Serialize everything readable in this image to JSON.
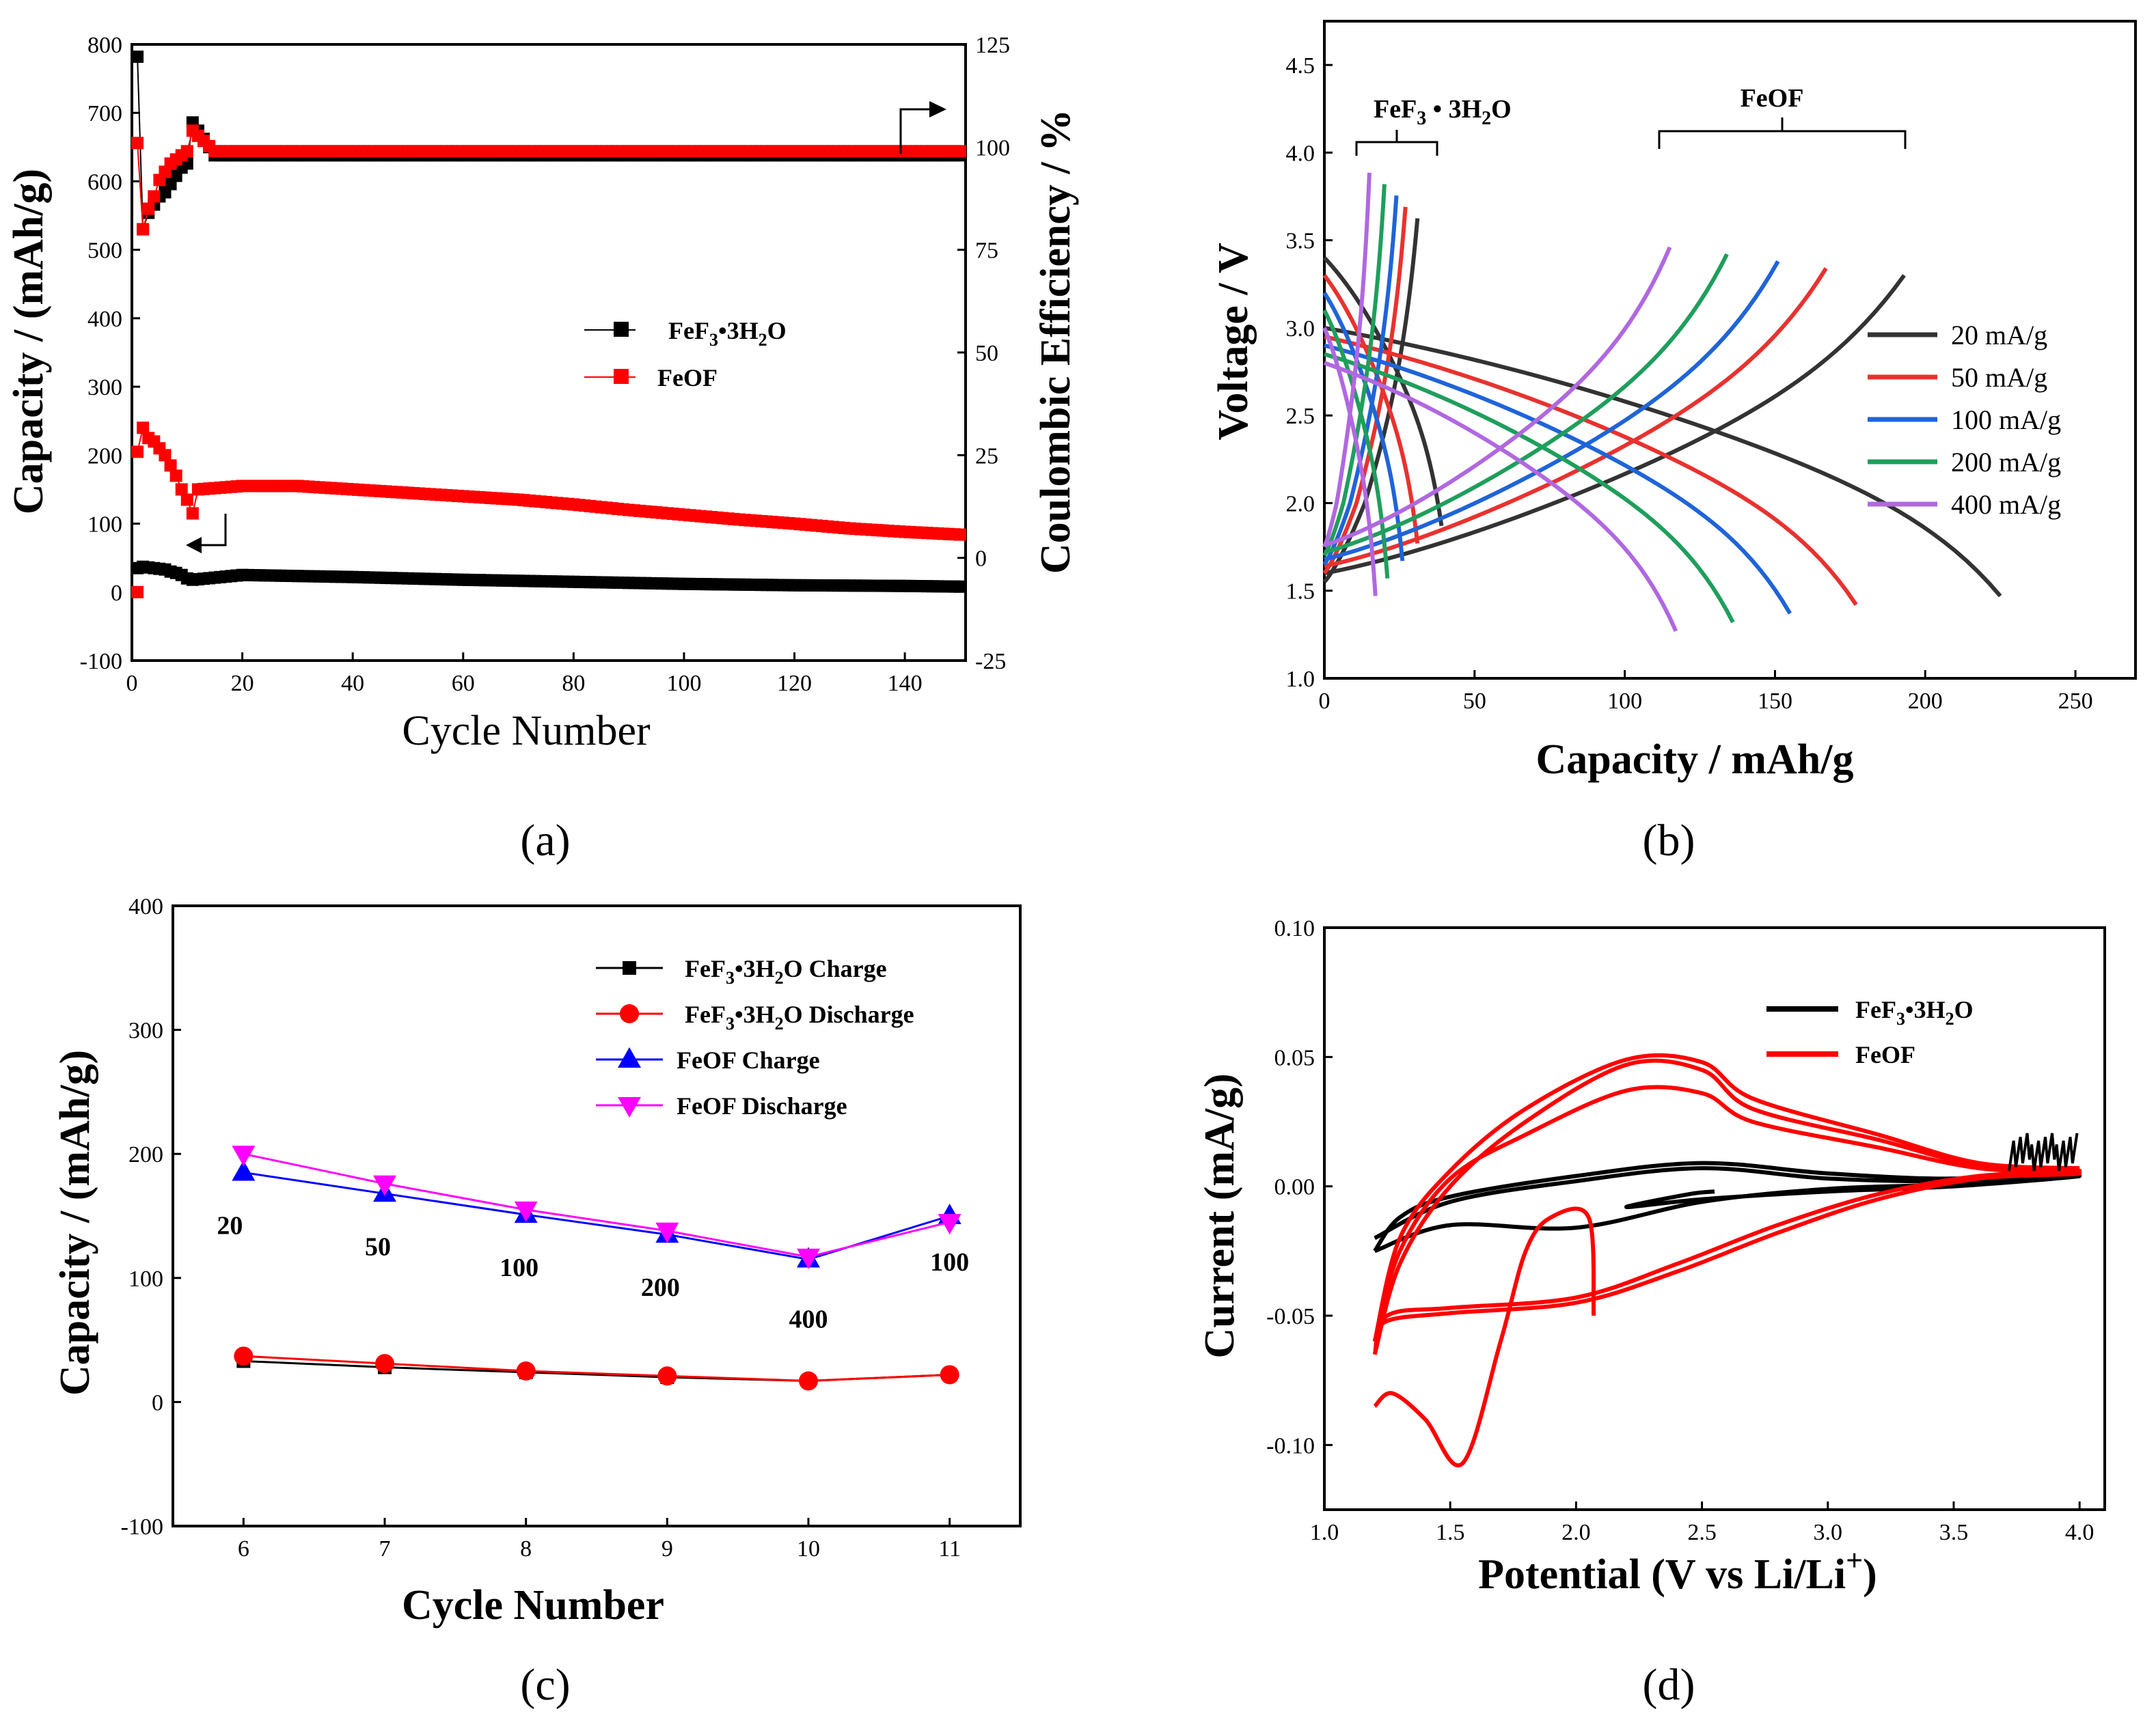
{
  "panels": [
    {
      "id": "a",
      "label": "(a)"
    },
    {
      "id": "b",
      "label": "(b)"
    },
    {
      "id": "c",
      "label": "(c)"
    },
    {
      "id": "d",
      "label": "(d)"
    }
  ],
  "colors": {
    "black": "#000000",
    "red": "#ff0000",
    "blue": "#0000ff",
    "magenta": "#ff00ff",
    "c20": "#333333",
    "c50": "#e8322f",
    "c100": "#1f64d8",
    "c200": "#1f9e5c",
    "c400": "#b068e0"
  },
  "chart_data": [
    {
      "panel": "a",
      "type": "scatter",
      "xlabel": "Cycle Number",
      "ylabel": "Capacity / (mAh/g)",
      "ylabel_right": "Coulombic Efficiency / %",
      "xlim": [
        0,
        151
      ],
      "ylim": [
        -100,
        800
      ],
      "ylim_right": [
        -25,
        125
      ],
      "xticks": [
        "0",
        "20",
        "40",
        "60",
        "80",
        "100",
        "120",
        "140"
      ],
      "yticks": [
        "-100",
        "0",
        "100",
        "200",
        "300",
        "400",
        "500",
        "600",
        "700",
        "800"
      ],
      "yticks_right": [
        "-25",
        "0",
        "25",
        "50",
        "75",
        "100",
        "125"
      ],
      "legend": [
        {
          "name": "FeF3•3H2O",
          "color": "#000000",
          "marker": "square"
        },
        {
          "name": "FeOF",
          "color": "#ff0000",
          "marker": "square"
        }
      ],
      "series": [
        {
          "name": "FeF3•3H2O capacity",
          "axis": "left",
          "color": "#000000",
          "x": [
            1,
            2,
            3,
            4,
            5,
            6,
            7,
            8,
            9,
            10,
            11,
            20,
            40,
            60,
            80,
            100,
            120,
            140,
            150
          ],
          "y": [
            35,
            37,
            36,
            35,
            34,
            33,
            30,
            28,
            25,
            20,
            18,
            25,
            22,
            18,
            15,
            12,
            10,
            9,
            8
          ]
        },
        {
          "name": "FeOF capacity",
          "axis": "left",
          "color": "#ff0000",
          "x": [
            1,
            2,
            3,
            4,
            5,
            6,
            7,
            8,
            9,
            10,
            11,
            12,
            20,
            30,
            40,
            50,
            60,
            70,
            80,
            90,
            100,
            110,
            120,
            130,
            140,
            150
          ],
          "y": [
            205,
            240,
            225,
            220,
            210,
            200,
            185,
            170,
            150,
            135,
            115,
            150,
            155,
            155,
            150,
            145,
            140,
            135,
            128,
            120,
            113,
            106,
            100,
            93,
            88,
            84
          ]
        },
        {
          "name": "FeF3•3H2O CE",
          "axis": "right",
          "color": "#000000",
          "x": [
            1,
            2,
            3,
            4,
            5,
            6,
            7,
            8,
            9,
            10,
            11,
            15,
            20,
            40,
            60,
            80,
            100,
            120,
            140,
            150
          ],
          "y": [
            122,
            80,
            84,
            86,
            88,
            89,
            91,
            93,
            95,
            96,
            106,
            98,
            98,
            98,
            98,
            98,
            98,
            98,
            98,
            98
          ]
        },
        {
          "name": "FeOF CE",
          "axis": "right",
          "color": "#ff0000",
          "x": [
            1,
            2,
            3,
            4,
            5,
            6,
            7,
            8,
            9,
            10,
            11,
            15,
            20,
            40,
            60,
            80,
            100,
            120,
            140,
            150
          ],
          "y": [
            101,
            80,
            85,
            88,
            92,
            94,
            96,
            97,
            98,
            99,
            104,
            99,
            99,
            99,
            99,
            99,
            99,
            99,
            99,
            99
          ]
        }
      ],
      "annotations": [
        {
          "text": "arrow to right axis"
        },
        {
          "text": "arrow to left axis"
        }
      ]
    },
    {
      "panel": "b",
      "type": "line",
      "xlabel": "Capacity / mAh/g",
      "ylabel": "Voltage / V",
      "xlim": [
        0,
        270
      ],
      "ylim": [
        1.0,
        4.75
      ],
      "xticks": [
        "0",
        "50",
        "100",
        "150",
        "200",
        "250"
      ],
      "yticks": [
        "1.0",
        "1.5",
        "2.0",
        "2.5",
        "3.0",
        "3.5",
        "4.0",
        "4.5"
      ],
      "group_labels": [
        "FeF3 • 3H2O",
        "FeOF"
      ],
      "legend": [
        {
          "name": "20 mA/g",
          "color": "#333333"
        },
        {
          "name": "50 mA/g",
          "color": "#e8322f"
        },
        {
          "name": "100 mA/g",
          "color": "#1f64d8"
        },
        {
          "name": "200 mA/g",
          "color": "#1f9e5c"
        },
        {
          "name": "400 mA/g",
          "color": "#b068e0"
        }
      ],
      "series": [
        {
          "name": "20 mA/g",
          "color": "#333333",
          "feof_charge_end": 193,
          "feof_discharge_end": 225,
          "fef3_charge_end": 31,
          "fef3_discharge_end": 39
        },
        {
          "name": "50 mA/g",
          "color": "#e8322f",
          "feof_charge_end": 167,
          "feof_discharge_end": 177,
          "fef3_charge_end": 27,
          "fef3_discharge_end": 31
        },
        {
          "name": "100 mA/g",
          "color": "#1f64d8",
          "feof_charge_end": 151,
          "feof_discharge_end": 155,
          "fef3_charge_end": 24,
          "fef3_discharge_end": 26
        },
        {
          "name": "200 mA/g",
          "color": "#1f9e5c",
          "feof_charge_end": 134,
          "feof_discharge_end": 136,
          "fef3_charge_end": 20,
          "fef3_discharge_end": 21
        },
        {
          "name": "400 mA/g",
          "color": "#b068e0",
          "feof_charge_end": 115,
          "feof_discharge_end": 117,
          "fef3_charge_end": 15,
          "fef3_discharge_end": 17
        }
      ]
    },
    {
      "panel": "c",
      "type": "line",
      "xlabel": "Cycle Number",
      "ylabel": "Capacity / (mAh/g)",
      "xlim": [
        5.5,
        11.5
      ],
      "ylim": [
        -100,
        400
      ],
      "xticks": [
        "6",
        "7",
        "8",
        "9",
        "10",
        "11"
      ],
      "yticks": [
        "-100",
        "0",
        "100",
        "200",
        "300",
        "400"
      ],
      "categories": [
        6,
        7,
        8,
        9,
        10,
        11
      ],
      "rate_labels": [
        "20",
        "50",
        "100",
        "200",
        "400",
        "100"
      ],
      "legend": [
        {
          "name": "FeF3•3H2O Charge",
          "color": "#000000",
          "marker": "square"
        },
        {
          "name": "FeF3•3H2O Discharge",
          "color": "#ff0000",
          "marker": "circle"
        },
        {
          "name": "FeOF Charge",
          "color": "#0000ff",
          "marker": "triangle-up"
        },
        {
          "name": "FeOF Discharge",
          "color": "#ff00ff",
          "marker": "triangle-down"
        }
      ],
      "series": [
        {
          "name": "FeF3•3H2O Charge",
          "color": "#000000",
          "marker": "square",
          "values": [
            33,
            28,
            24,
            20,
            17,
            22
          ]
        },
        {
          "name": "FeF3•3H2O Discharge",
          "color": "#ff0000",
          "marker": "circle",
          "values": [
            37,
            31,
            25,
            21,
            17,
            22
          ]
        },
        {
          "name": "FeOF Charge",
          "color": "#0000ff",
          "marker": "triangle-up",
          "values": [
            185,
            168,
            151,
            135,
            115,
            150
          ]
        },
        {
          "name": "FeOF Discharge",
          "color": "#ff00ff",
          "marker": "triangle-down",
          "values": [
            200,
            176,
            155,
            138,
            117,
            145
          ]
        }
      ]
    },
    {
      "panel": "d",
      "type": "line",
      "xlabel": "Potential (V vs Li/Li+)",
      "ylabel": "Current (mA/g)",
      "xlim": [
        1.0,
        4.1
      ],
      "ylim": [
        -0.125,
        0.1
      ],
      "xticks": [
        "1.0",
        "1.5",
        "2.0",
        "2.5",
        "3.0",
        "3.5",
        "4.0"
      ],
      "yticks": [
        "-0.10",
        "-0.05",
        "0.00",
        "0.05",
        "0.10"
      ],
      "legend": [
        {
          "name": "FeF3•3H2O",
          "color": "#000000"
        },
        {
          "name": "FeOF",
          "color": "#ff0000"
        }
      ],
      "series": [
        {
          "name": "FeF3•3H2O",
          "color": "#000000",
          "loops": [
            [
              [
                1.2,
                -0.025
              ],
              [
                1.3,
                -0.012
              ],
              [
                1.5,
                -0.004
              ],
              [
                2.0,
                0.004
              ],
              [
                2.5,
                0.009
              ],
              [
                3.0,
                0.005
              ],
              [
                3.5,
                0.003
              ],
              [
                4.0,
                0.006
              ],
              [
                3.5,
                0.001
              ],
              [
                3.0,
                -0.001
              ],
              [
                2.5,
                -0.006
              ],
              [
                2.0,
                -0.016
              ],
              [
                1.5,
                -0.015
              ],
              [
                1.2,
                -0.025
              ]
            ],
            [
              [
                1.2,
                -0.02
              ],
              [
                1.5,
                -0.006
              ],
              [
                2.0,
                0.002
              ],
              [
                2.5,
                0.007
              ],
              [
                3.0,
                0.003
              ],
              [
                3.5,
                0.002
              ],
              [
                4.0,
                0.004
              ],
              [
                3.5,
                0.0
              ],
              [
                3.0,
                -0.002
              ],
              [
                2.5,
                -0.005
              ],
              [
                2.2,
                -0.008
              ],
              [
                2.45,
                -0.003
              ],
              [
                2.55,
                -0.002
              ]
            ]
          ]
        },
        {
          "name": "FeOF",
          "color": "#ff0000",
          "loops": [
            [
              [
                1.2,
                -0.085
              ],
              [
                1.27,
                -0.08
              ],
              [
                1.4,
                -0.09
              ],
              [
                1.55,
                -0.107
              ],
              [
                1.7,
                -0.06
              ],
              [
                1.8,
                -0.025
              ],
              [
                1.9,
                -0.012
              ],
              [
                2.05,
                -0.012
              ],
              [
                2.07,
                -0.05
              ]
            ],
            [
              [
                1.2,
                -0.065
              ],
              [
                1.3,
                -0.03
              ],
              [
                1.5,
                0.0
              ],
              [
                1.8,
                0.025
              ],
              [
                2.2,
                0.047
              ],
              [
                2.5,
                0.045
              ],
              [
                2.7,
                0.03
              ],
              [
                3.2,
                0.018
              ],
              [
                3.6,
                0.008
              ],
              [
                4.0,
                0.006
              ],
              [
                3.6,
                0.004
              ],
              [
                3.2,
                -0.003
              ],
              [
                2.8,
                -0.015
              ],
              [
                2.4,
                -0.03
              ],
              [
                2.0,
                -0.043
              ],
              [
                1.5,
                -0.047
              ],
              [
                1.25,
                -0.05
              ],
              [
                1.2,
                -0.065
              ]
            ],
            [
              [
                1.2,
                -0.06
              ],
              [
                1.3,
                -0.025
              ],
              [
                1.5,
                0.003
              ],
              [
                1.8,
                0.02
              ],
              [
                2.2,
                0.037
              ],
              [
                2.5,
                0.036
              ],
              [
                2.7,
                0.025
              ],
              [
                3.2,
                0.015
              ],
              [
                3.6,
                0.007
              ],
              [
                4.0,
                0.005
              ],
              [
                3.6,
                0.003
              ],
              [
                3.2,
                -0.005
              ],
              [
                2.8,
                -0.018
              ],
              [
                2.4,
                -0.033
              ],
              [
                2.0,
                -0.045
              ],
              [
                1.5,
                -0.049
              ],
              [
                1.25,
                -0.052
              ],
              [
                1.2,
                -0.06
              ]
            ],
            [
              [
                1.2,
                -0.06
              ],
              [
                1.3,
                -0.02
              ],
              [
                1.5,
                0.006
              ],
              [
                1.8,
                0.03
              ],
              [
                2.2,
                0.049
              ],
              [
                2.5,
                0.048
              ],
              [
                2.7,
                0.034
              ],
              [
                3.2,
                0.02
              ],
              [
                3.6,
                0.009
              ],
              [
                4.0,
                0.007
              ]
            ]
          ]
        }
      ]
    }
  ]
}
